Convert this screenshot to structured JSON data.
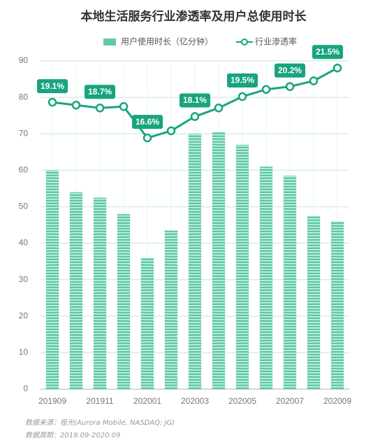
{
  "chart_data": {
    "type": "bar-line",
    "title": "本地生活服务行业渗透率及用户总使用时长",
    "categories": [
      "201909",
      null,
      "201911",
      null,
      "202001",
      null,
      "202003",
      null,
      "202005",
      null,
      "202007",
      null,
      "202009"
    ],
    "series": [
      {
        "name": "用户使用时长（亿分钟）",
        "type": "bar",
        "color": "#5fcaa8",
        "values": [
          60,
          54,
          52.5,
          48,
          36,
          43.5,
          70,
          70.5,
          67,
          61,
          58.5,
          47.5,
          46
        ]
      },
      {
        "name": "行业渗透率",
        "type": "line",
        "axis": "y2",
        "color": "#17a47f",
        "values": [
          19.1,
          18.9,
          18.7,
          18.8,
          16.6,
          17.1,
          18.1,
          18.7,
          19.5,
          20.0,
          20.2,
          20.6,
          21.5
        ],
        "value_labels": [
          "19.1%",
          null,
          "18.7%",
          null,
          "16.6%",
          null,
          "18.1%",
          null,
          "19.5%",
          null,
          "20.2%",
          null,
          "21.5%"
        ]
      }
    ],
    "ylim": [
      0,
      90
    ],
    "yticks": [
      0,
      10,
      20,
      30,
      40,
      50,
      60,
      70,
      80,
      90
    ],
    "y2lim": [
      -1,
      22
    ],
    "grid": true,
    "legend": "top",
    "notes": [
      "数据来源：极光(Aurora Mobile, NASDAQ: JG)",
      "数据周期：2019.09-2020.09"
    ]
  }
}
